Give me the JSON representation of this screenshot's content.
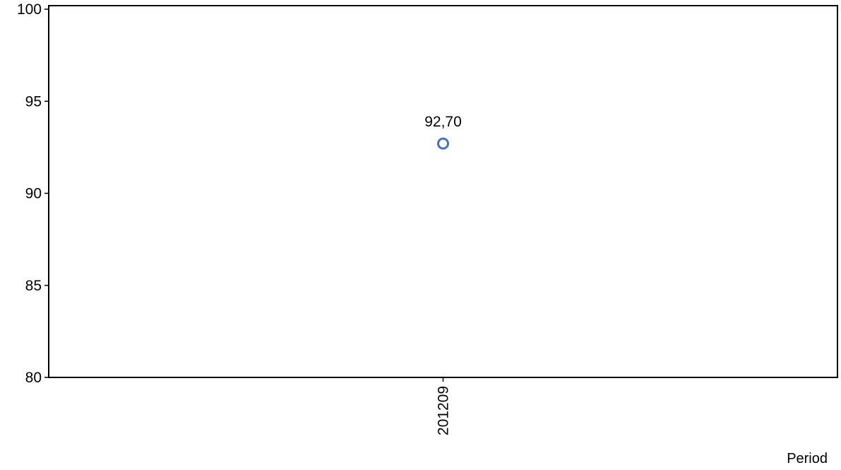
{
  "chart_data": {
    "type": "scatter",
    "title": "",
    "xlabel": "Period",
    "ylabel": "",
    "categories": [
      "201209"
    ],
    "series": [
      {
        "values": [
          92.7
        ],
        "data_labels": [
          "92,70"
        ]
      }
    ],
    "ylim": [
      80,
      100
    ],
    "yticks": [
      80,
      85,
      90,
      95,
      100
    ],
    "ytick_labels": [
      "80",
      "85",
      "90",
      "95",
      "100"
    ],
    "grid": false,
    "legend": "none",
    "marker": "hollow-circle",
    "colors": {
      "marker": "#4472C4",
      "axis": "#000000",
      "background": "#FFFFFF"
    }
  }
}
